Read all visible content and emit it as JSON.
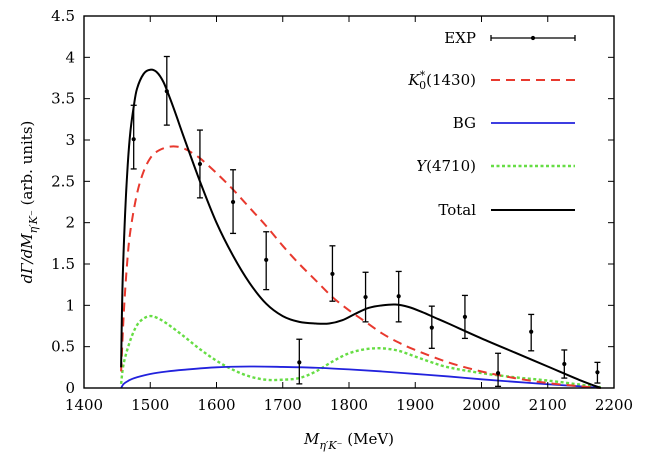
{
  "chart_data": {
    "type": "line",
    "title": "",
    "xlabel": "M_{η′K⁻} (MeV)",
    "xlabel_parts": {
      "main": "M",
      "sub": "η′K⁻",
      "unit": " (MeV)"
    },
    "ylabel": "dΓ/dM_{η′K⁻} (arb. units)",
    "ylabel_parts": {
      "main": "dΓ/dM",
      "sub": "η′K⁻",
      "unit": " (arb. units)"
    },
    "xlim": [
      1400,
      2200
    ],
    "ylim": [
      0,
      4.5
    ],
    "xticks": [
      1400,
      1500,
      1600,
      1700,
      1800,
      1900,
      2000,
      2100,
      2200
    ],
    "xtick_labels": [
      "1400",
      "1500",
      "1600",
      "1700",
      "1800",
      "1900",
      "2000",
      "2100",
      "2200"
    ],
    "yticks": [
      0,
      0.5,
      1,
      1.5,
      2,
      2.5,
      3,
      3.5,
      4,
      4.5
    ],
    "ytick_labels": [
      "0",
      "0.5",
      "1",
      "1.5",
      "2",
      "2.5",
      "3",
      "3.5",
      "4",
      "4.5"
    ],
    "grid": false,
    "legend_position": "top-right",
    "experimental": {
      "name": "EXP",
      "x": [
        1475,
        1525,
        1575,
        1625,
        1675,
        1725,
        1775,
        1825,
        1875,
        1925,
        1975,
        2025,
        2075,
        2125,
        2175
      ],
      "y": [
        3.01,
        3.59,
        2.71,
        2.25,
        1.55,
        0.31,
        1.38,
        1.1,
        1.11,
        0.73,
        0.86,
        0.18,
        0.68,
        0.29,
        0.19
      ],
      "y_high": [
        3.42,
        4.01,
        3.12,
        2.64,
        1.89,
        0.59,
        1.72,
        1.4,
        1.41,
        0.99,
        1.12,
        0.42,
        0.89,
        0.46,
        0.31
      ],
      "y_low": [
        2.65,
        3.18,
        2.3,
        1.87,
        1.19,
        0.05,
        1.05,
        0.8,
        0.8,
        0.48,
        0.6,
        0.02,
        0.45,
        0.12,
        0.06
      ],
      "color": "#000000"
    },
    "series": [
      {
        "name": "K₀*(1430)",
        "legend_main": "K",
        "legend_sup": "*",
        "legend_sub": "0",
        "legend_rest": "(1430)",
        "style": "dashed",
        "color": "#e8392e",
        "x": [
          1456,
          1460,
          1465,
          1470,
          1480,
          1490,
          1500,
          1510,
          1520,
          1530,
          1540,
          1550,
          1560,
          1575,
          1600,
          1625,
          1650,
          1675,
          1700,
          1725,
          1750,
          1775,
          1800,
          1825,
          1850,
          1875,
          1900,
          1950,
          2000,
          2050,
          2100,
          2150,
          2180
        ],
        "values": [
          0.2,
          0.9,
          1.5,
          1.9,
          2.35,
          2.62,
          2.78,
          2.86,
          2.9,
          2.92,
          2.92,
          2.9,
          2.86,
          2.78,
          2.6,
          2.4,
          2.18,
          1.96,
          1.72,
          1.5,
          1.3,
          1.1,
          0.94,
          0.8,
          0.66,
          0.55,
          0.46,
          0.31,
          0.2,
          0.12,
          0.06,
          0.02,
          0.0
        ]
      },
      {
        "name": "BG",
        "legend_main": "BG",
        "style": "solid",
        "color": "#2222dd",
        "x": [
          1456,
          1460,
          1470,
          1480,
          1500,
          1525,
          1550,
          1600,
          1650,
          1700,
          1750,
          1800,
          1850,
          1900,
          1950,
          2000,
          2050,
          2100,
          2150,
          2180
        ],
        "values": [
          0.0,
          0.05,
          0.1,
          0.13,
          0.17,
          0.2,
          0.22,
          0.25,
          0.26,
          0.255,
          0.245,
          0.225,
          0.2,
          0.17,
          0.14,
          0.105,
          0.075,
          0.045,
          0.02,
          0.0
        ]
      },
      {
        "name": "Y(4710)",
        "legend_main": "Y",
        "legend_rest": "(4710)",
        "style": "dotted",
        "color": "#66dd44",
        "x": [
          1456,
          1460,
          1470,
          1480,
          1490,
          1500,
          1510,
          1525,
          1550,
          1575,
          1600,
          1625,
          1650,
          1675,
          1700,
          1725,
          1750,
          1775,
          1800,
          1825,
          1850,
          1875,
          1900,
          1925,
          1950,
          2000,
          2050,
          2100,
          2150,
          2180
        ],
        "values": [
          0.05,
          0.3,
          0.58,
          0.76,
          0.84,
          0.87,
          0.85,
          0.78,
          0.63,
          0.47,
          0.33,
          0.22,
          0.14,
          0.1,
          0.1,
          0.12,
          0.2,
          0.32,
          0.42,
          0.47,
          0.48,
          0.45,
          0.38,
          0.31,
          0.25,
          0.18,
          0.13,
          0.09,
          0.04,
          0.01
        ]
      },
      {
        "name": "Total",
        "legend_main": "Total",
        "style": "solid",
        "color": "#000000",
        "x": [
          1456,
          1458,
          1462,
          1466,
          1470,
          1475,
          1480,
          1490,
          1500,
          1510,
          1520,
          1530,
          1540,
          1550,
          1575,
          1600,
          1625,
          1650,
          1675,
          1700,
          1725,
          1750,
          1770,
          1790,
          1810,
          1830,
          1850,
          1870,
          1890,
          1910,
          1930,
          1950,
          2000,
          2050,
          2100,
          2150,
          2180
        ],
        "values": [
          0.25,
          1.2,
          2.1,
          2.7,
          3.1,
          3.4,
          3.62,
          3.8,
          3.85,
          3.82,
          3.7,
          3.5,
          3.28,
          3.05,
          2.5,
          2.0,
          1.6,
          1.27,
          1.02,
          0.87,
          0.8,
          0.78,
          0.78,
          0.82,
          0.9,
          0.97,
          1.0,
          1.01,
          0.98,
          0.92,
          0.85,
          0.78,
          0.6,
          0.43,
          0.26,
          0.09,
          0.0
        ]
      }
    ]
  }
}
